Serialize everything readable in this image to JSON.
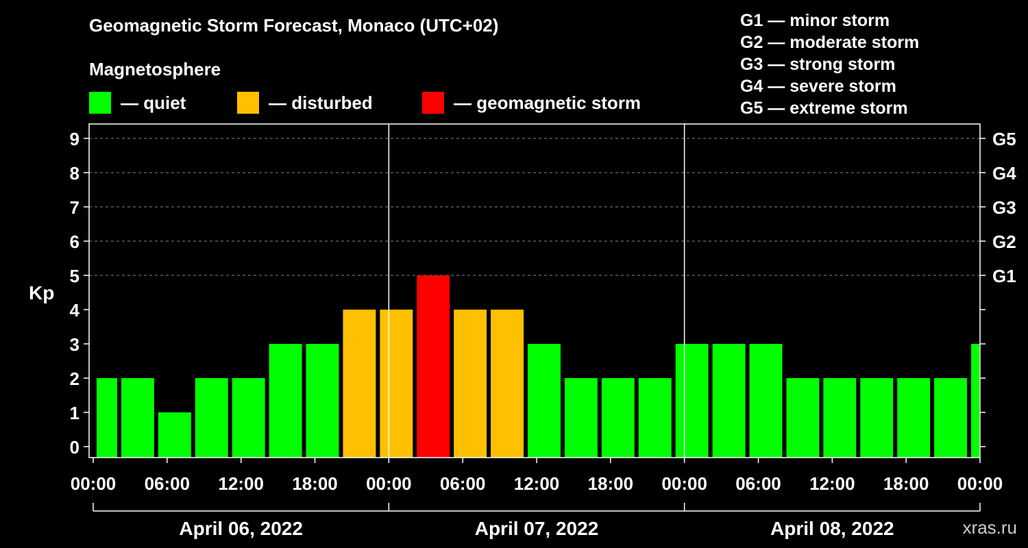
{
  "header": {
    "title": "Geomagnetic Storm Forecast, Monaco (UTC+02)",
    "subtitle": "Magnetosphere"
  },
  "legend": [
    {
      "label": "— quiet",
      "color": "#00ff00"
    },
    {
      "label": "— disturbed",
      "color": "#ffc000"
    },
    {
      "label": "— geomagnetic storm",
      "color": "#ff0000"
    }
  ],
  "g_legend": [
    "G1 — minor storm",
    "G2 — moderate storm",
    "G3 — strong storm",
    "G4 — severe storm",
    "G5 — extreme storm"
  ],
  "watermark": "xras.ru",
  "chart_data": {
    "type": "bar",
    "title": "Geomagnetic Storm Forecast, Monaco (UTC+02)",
    "ylabel": "Kp",
    "ylim": [
      0,
      9
    ],
    "yticks": [
      "0",
      "1",
      "2",
      "3",
      "4",
      "5",
      "6",
      "7",
      "8",
      "9"
    ],
    "right_ticks": [
      {
        "kp": 5,
        "label": "G1"
      },
      {
        "kp": 6,
        "label": "G2"
      },
      {
        "kp": 7,
        "label": "G3"
      },
      {
        "kp": 8,
        "label": "G4"
      },
      {
        "kp": 9,
        "label": "G5"
      }
    ],
    "x_range_hours": [
      0,
      72
    ],
    "x_ticks": [
      "00:00",
      "06:00",
      "12:00",
      "18:00",
      "00:00",
      "06:00",
      "12:00",
      "18:00",
      "00:00",
      "06:00",
      "12:00",
      "18:00",
      "00:00"
    ],
    "days": [
      "April 06, 2022",
      "April 07, 2022",
      "April 08, 2022"
    ],
    "bars": [
      {
        "start": 0,
        "end": 2,
        "kp": 2,
        "level": "quiet"
      },
      {
        "start": 2,
        "end": 5,
        "kp": 2,
        "level": "quiet"
      },
      {
        "start": 5,
        "end": 8,
        "kp": 1,
        "level": "quiet"
      },
      {
        "start": 8,
        "end": 11,
        "kp": 2,
        "level": "quiet"
      },
      {
        "start": 11,
        "end": 14,
        "kp": 2,
        "level": "quiet"
      },
      {
        "start": 14,
        "end": 17,
        "kp": 3,
        "level": "quiet"
      },
      {
        "start": 17,
        "end": 20,
        "kp": 3,
        "level": "quiet"
      },
      {
        "start": 20,
        "end": 23,
        "kp": 4,
        "level": "disturbed"
      },
      {
        "start": 23,
        "end": 26,
        "kp": 4,
        "level": "disturbed"
      },
      {
        "start": 26,
        "end": 29,
        "kp": 5,
        "level": "storm"
      },
      {
        "start": 29,
        "end": 32,
        "kp": 4,
        "level": "disturbed"
      },
      {
        "start": 32,
        "end": 35,
        "kp": 4,
        "level": "disturbed"
      },
      {
        "start": 35,
        "end": 38,
        "kp": 3,
        "level": "quiet"
      },
      {
        "start": 38,
        "end": 41,
        "kp": 2,
        "level": "quiet"
      },
      {
        "start": 41,
        "end": 44,
        "kp": 2,
        "level": "quiet"
      },
      {
        "start": 44,
        "end": 47,
        "kp": 2,
        "level": "quiet"
      },
      {
        "start": 47,
        "end": 50,
        "kp": 3,
        "level": "quiet"
      },
      {
        "start": 50,
        "end": 53,
        "kp": 3,
        "level": "quiet"
      },
      {
        "start": 53,
        "end": 56,
        "kp": 3,
        "level": "quiet"
      },
      {
        "start": 56,
        "end": 59,
        "kp": 2,
        "level": "quiet"
      },
      {
        "start": 59,
        "end": 62,
        "kp": 2,
        "level": "quiet"
      },
      {
        "start": 62,
        "end": 65,
        "kp": 2,
        "level": "quiet"
      },
      {
        "start": 65,
        "end": 68,
        "kp": 2,
        "level": "quiet"
      },
      {
        "start": 68,
        "end": 71,
        "kp": 2,
        "level": "quiet"
      },
      {
        "start": 71,
        "end": 72,
        "kp": 3,
        "level": "quiet"
      }
    ],
    "colors": {
      "quiet": "#00ff00",
      "disturbed": "#ffc000",
      "storm": "#ff0000"
    }
  }
}
